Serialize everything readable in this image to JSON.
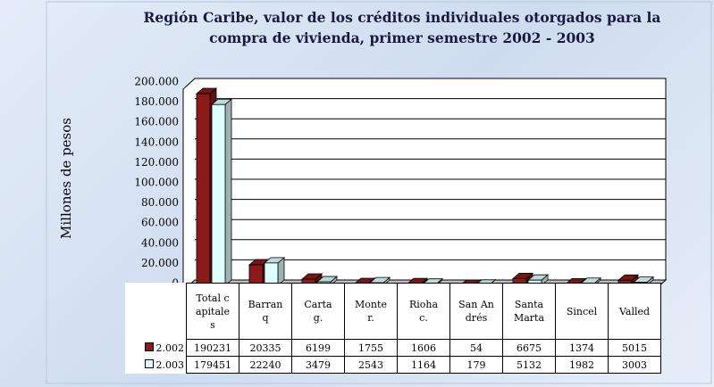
{
  "chart_data": {
    "type": "bar3d",
    "title": "Región Caribe, valor de los créditos individuales  otorgados para la compra de vivienda, primer semestre 2002 - 2003",
    "y_label": "Millones de pesos",
    "categories": [
      "Total capitales",
      "Barranq",
      "Cartag.",
      "Monter.",
      "Riohac.",
      "San Andrés",
      "Santa Marta",
      "Sincel",
      "Valled"
    ],
    "series": [
      {
        "name": "2.002",
        "color": "#8b1a1a",
        "values": [
          190231,
          20335,
          6199,
          1755,
          1606,
          54,
          6675,
          1374,
          5015
        ]
      },
      {
        "name": "2.003",
        "color": "#e0ffff",
        "values": [
          179451,
          22240,
          3479,
          2543,
          1164,
          179,
          5132,
          1982,
          3003
        ]
      }
    ],
    "ylim": [
      0,
      200000
    ],
    "yticks": [
      0,
      {
        "value": 20000,
        "label": "20.000"
      },
      {
        "value": 40000,
        "label": "40.000"
      },
      {
        "value": 60000,
        "label": "60.000"
      },
      {
        "value": 80000,
        "label": "80.000"
      },
      {
        "value": 100000,
        "label": "100.000"
      },
      {
        "value": 120000,
        "label": "120.000"
      },
      {
        "value": 140000,
        "label": "140.000"
      },
      {
        "value": 160000,
        "label": "160.000"
      },
      {
        "value": 180000,
        "label": "180.000"
      },
      {
        "value": 200000,
        "label": "200.000"
      }
    ],
    "grid": true
  }
}
